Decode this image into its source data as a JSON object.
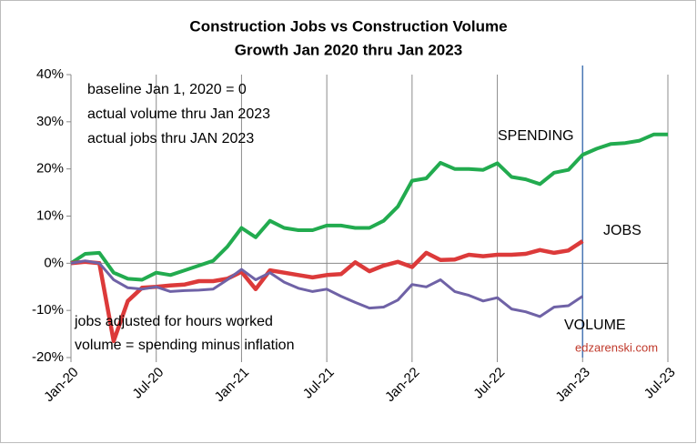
{
  "chart_data": {
    "type": "line",
    "title": "Construction Jobs vs Construction Volume",
    "subtitle": "Growth Jan 2020 thru Jan 2023",
    "x": [
      0,
      1,
      2,
      3,
      4,
      5,
      6,
      7,
      8,
      9,
      10,
      11,
      12,
      13,
      14,
      15,
      16,
      17,
      18,
      19,
      20,
      21,
      22,
      23,
      24,
      25,
      26,
      27,
      28,
      29,
      30,
      31,
      32,
      33,
      34,
      35,
      36,
      37,
      38,
      39,
      40,
      41,
      42
    ],
    "xlim": [
      0,
      42
    ],
    "xticks": [
      {
        "value": 0,
        "label": "Jan-20"
      },
      {
        "value": 6,
        "label": "Jul-20"
      },
      {
        "value": 12,
        "label": "Jan-21"
      },
      {
        "value": 18,
        "label": "Jul-21"
      },
      {
        "value": 24,
        "label": "Jan-22"
      },
      {
        "value": 30,
        "label": "Jul-22"
      },
      {
        "value": 36,
        "label": "Jan-23"
      },
      {
        "value": 42,
        "label": "Jul-23"
      }
    ],
    "ylim": [
      -20,
      40
    ],
    "yticks": [
      {
        "value": -20,
        "label": "-20%"
      },
      {
        "value": -10,
        "label": "-10%"
      },
      {
        "value": 0,
        "label": "0%"
      },
      {
        "value": 10,
        "label": "10%"
      },
      {
        "value": 20,
        "label": "20%"
      },
      {
        "value": 30,
        "label": "30%"
      },
      {
        "value": 40,
        "label": "40%"
      }
    ],
    "grid": "x",
    "marker_x": 36,
    "series": [
      {
        "name": "SPENDING",
        "color": "#22ab4f",
        "values": [
          0,
          2,
          2.2,
          -2,
          -3.3,
          -3.5,
          -2,
          -2.5,
          -1.5,
          -0.5,
          0.5,
          3.5,
          7.5,
          5.5,
          9,
          7.5,
          7,
          7,
          8,
          8,
          7.5,
          7.5,
          9,
          12,
          17.5,
          18,
          21.3,
          20,
          20,
          19.8,
          21.2,
          18.3,
          17.8,
          16.8,
          19.2,
          19.8,
          23,
          24.3,
          25.3,
          25.5,
          26,
          27.3,
          27.3
        ]
      },
      {
        "name": "JOBS",
        "color": "#dc3a3a",
        "values": [
          0,
          0.3,
          0,
          -16.5,
          -8,
          -5.2,
          -5,
          -4.7,
          -4.5,
          -3.8,
          -3.8,
          -3.3,
          -1.8,
          -5.5,
          -1.5,
          -2,
          -2.5,
          -3,
          -2.5,
          -2.3,
          0.2,
          -1.7,
          -0.5,
          0.3,
          -0.8,
          2.2,
          0.7,
          0.8,
          1.8,
          1.5,
          1.8,
          1.8,
          2,
          2.8,
          2.2,
          2.7,
          4.7,
          null,
          null,
          null,
          null,
          null,
          null
        ]
      },
      {
        "name": "VOLUME",
        "color": "#6f62a6",
        "values": [
          0,
          0.5,
          0,
          -3.5,
          -5.2,
          -5.5,
          -5,
          -6,
          -5.8,
          -5.7,
          -5.5,
          -3.5,
          -1.3,
          -3.5,
          -2,
          -4,
          -5.3,
          -6,
          -5.5,
          -7,
          -8.3,
          -9.5,
          -9.3,
          -7.8,
          -4.5,
          -5,
          -3.5,
          -6,
          -6.8,
          -8,
          -7.3,
          -9.7,
          -10.3,
          -11.3,
          -9.3,
          -9,
          -7,
          null,
          null,
          null,
          null,
          null,
          null
        ]
      }
    ],
    "annotations": [
      "baseline Jan 1, 2020 = 0",
      "actual volume thru Jan 2023",
      "actual jobs thru JAN 2023",
      "jobs adjusted for hours worked",
      "volume = spending minus inflation",
      "edzarenski.com"
    ]
  }
}
